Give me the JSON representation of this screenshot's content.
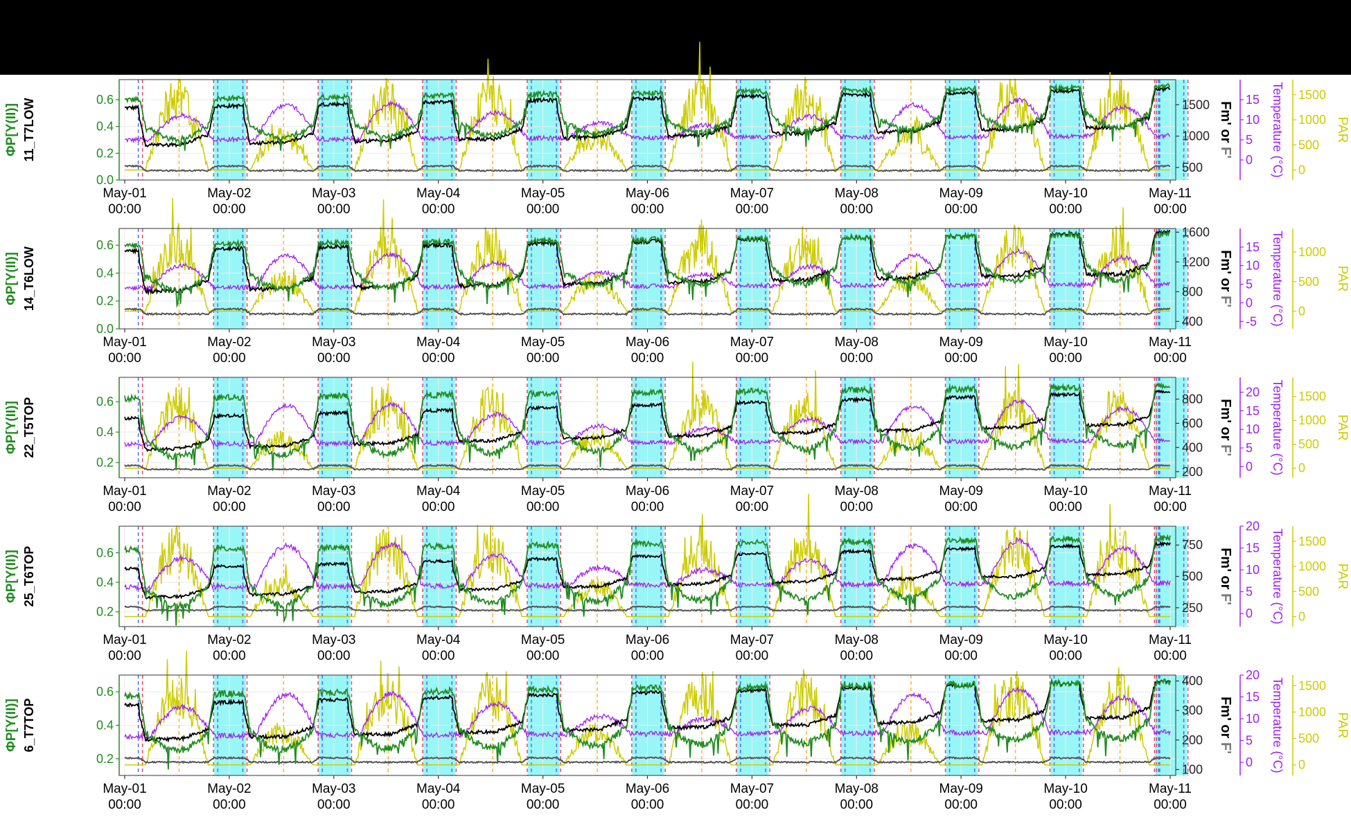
{
  "x_axis": {
    "tick_labels": [
      [
        "May-01",
        "00:00"
      ],
      [
        "May-02",
        "00:00"
      ],
      [
        "May-03",
        "00:00"
      ],
      [
        "May-04",
        "00:00"
      ],
      [
        "May-05",
        "00:00"
      ],
      [
        "May-06",
        "00:00"
      ],
      [
        "May-07",
        "00:00"
      ],
      [
        "May-08",
        "00:00"
      ],
      [
        "May-09",
        "00:00"
      ],
      [
        "May-10",
        "00:00"
      ],
      [
        "May-11",
        "00:00"
      ]
    ],
    "range_days": [
      0,
      10
    ]
  },
  "axis_titles": {
    "phi": "ΦP[Y(II)]",
    "fm": "Fm' or F'",
    "temperature": "Temperature (°C)",
    "par": "PAR"
  },
  "colors": {
    "phi": "#228B22",
    "fm_prime": "#000000",
    "f_prime": "#555555",
    "temperature": "#A020F0",
    "par": "#CCCC00",
    "night_shade": "#8EF5F5",
    "vline_red": "#E0476A",
    "vline_blue": "#4D6BFF",
    "vline_orange": "#FFB133",
    "grid": "#EBEBEB",
    "panel_border": "#333333"
  },
  "chart_data": [
    {
      "type": "line",
      "panel_label": "11_T7LOW",
      "ylim_phi": [
        0,
        0.75
      ],
      "phi_ticks": [
        "0.0",
        "0.2",
        "0.4",
        "0.6"
      ],
      "ylim_fm": [
        300,
        1900
      ],
      "fm_ticks": [
        [
          "500",
          500
        ],
        [
          "1000",
          1000
        ],
        [
          "1500",
          1500
        ]
      ],
      "ylim_temp": [
        -5,
        20
      ],
      "temp_ticks": [
        [
          "0",
          0
        ],
        [
          "5",
          5
        ],
        [
          "10",
          10
        ],
        [
          "15",
          15
        ]
      ],
      "ylim_par": [
        -200,
        1800
      ],
      "par_ticks": [
        [
          "0",
          0
        ],
        [
          "500",
          500
        ],
        [
          "1000",
          1000
        ],
        [
          "1500",
          1500
        ]
      ],
      "levels": {
        "phi_day": 0.35,
        "phi_night": 0.6,
        "phi_trend": 0.01,
        "fm_day": 850,
        "fm_night": 1450,
        "fm_trend": 30,
        "f_base": 450,
        "temp_base": 5,
        "temp_amp": 10,
        "par_peak": 1400
      }
    },
    {
      "type": "line",
      "panel_label": "14_T6LOW",
      "ylim_phi": [
        0,
        0.72
      ],
      "phi_ticks": [
        "0.0",
        "0.2",
        "0.4",
        "0.6"
      ],
      "ylim_fm": [
        300,
        1650
      ],
      "fm_ticks": [
        [
          "400",
          400
        ],
        [
          "800",
          800
        ],
        [
          "1200",
          1200
        ],
        [
          "1600",
          1600
        ]
      ],
      "ylim_temp": [
        -7,
        20
      ],
      "temp_ticks": [
        [
          "-5",
          -5
        ],
        [
          "0",
          0
        ],
        [
          "5",
          5
        ],
        [
          "10",
          10
        ],
        [
          "15",
          15
        ]
      ],
      "ylim_par": [
        -300,
        1400
      ],
      "par_ticks": [
        [
          "0",
          0
        ],
        [
          "500",
          500
        ],
        [
          "1000",
          1000
        ]
      ],
      "levels": {
        "phi_day": 0.33,
        "phi_night": 0.6,
        "phi_trend": 0.008,
        "fm_day": 800,
        "fm_night": 1350,
        "fm_trend": 25,
        "f_base": 500,
        "temp_base": 4,
        "temp_amp": 10,
        "par_peak": 1100
      }
    },
    {
      "type": "line",
      "panel_label": "22_T5TOP",
      "ylim_phi": [
        0.1,
        0.76
      ],
      "phi_ticks": [
        "0.2",
        "0.4",
        "0.6"
      ],
      "ylim_fm": [
        150,
        980
      ],
      "fm_ticks": [
        [
          "200",
          200
        ],
        [
          "400",
          400
        ],
        [
          "600",
          600
        ],
        [
          "800",
          800
        ]
      ],
      "ylim_temp": [
        -3,
        24
      ],
      "temp_ticks": [
        [
          "0",
          0
        ],
        [
          "5",
          5
        ],
        [
          "10",
          10
        ],
        [
          "15",
          15
        ],
        [
          "20",
          20
        ]
      ],
      "ylim_par": [
        -200,
        1900
      ],
      "par_ticks": [
        [
          "0",
          0
        ],
        [
          "500",
          500
        ],
        [
          "1000",
          1000
        ],
        [
          "1500",
          1500
        ]
      ],
      "levels": {
        "phi_day": 0.3,
        "phi_night": 0.62,
        "phi_trend": 0.008,
        "fm_day": 380,
        "fm_night": 640,
        "fm_trend": 22,
        "f_base": 220,
        "temp_base": 6,
        "temp_amp": 12,
        "par_peak": 1300
      }
    },
    {
      "type": "line",
      "panel_label": "25_T6TOP",
      "ylim_phi": [
        0.1,
        0.78
      ],
      "phi_ticks": [
        "0.2",
        "0.4",
        "0.6"
      ],
      "ylim_fm": [
        100,
        900
      ],
      "fm_ticks": [
        [
          "250",
          250
        ],
        [
          "500",
          500
        ],
        [
          "750",
          750
        ]
      ],
      "ylim_temp": [
        -3,
        20
      ],
      "temp_ticks": [
        [
          "0",
          0
        ],
        [
          "5",
          5
        ],
        [
          "10",
          10
        ],
        [
          "15",
          15
        ],
        [
          "20",
          20
        ]
      ],
      "ylim_par": [
        -200,
        1800
      ],
      "par_ticks": [
        [
          "0",
          0
        ],
        [
          "500",
          500
        ],
        [
          "1000",
          1000
        ],
        [
          "1500",
          1500
        ]
      ],
      "levels": {
        "phi_day": 0.3,
        "phi_night": 0.62,
        "phi_trend": 0.008,
        "fm_day": 330,
        "fm_night": 560,
        "fm_trend": 20,
        "f_base": 230,
        "temp_base": 6,
        "temp_amp": 11,
        "par_peak": 1350
      }
    },
    {
      "type": "line",
      "panel_label": "6_T7TOP",
      "ylim_phi": [
        0.1,
        0.7
      ],
      "phi_ticks": [
        "0.2",
        "0.4",
        "0.6"
      ],
      "ylim_fm": [
        80,
        420
      ],
      "fm_ticks": [
        [
          "100",
          100
        ],
        [
          "200",
          200
        ],
        [
          "300",
          300
        ],
        [
          "400",
          400
        ]
      ],
      "ylim_temp": [
        -3,
        20
      ],
      "temp_ticks": [
        [
          "0",
          0
        ],
        [
          "5",
          5
        ],
        [
          "10",
          10
        ],
        [
          "15",
          15
        ],
        [
          "20",
          20
        ]
      ],
      "ylim_par": [
        -200,
        1700
      ],
      "par_ticks": [
        [
          "0",
          0
        ],
        [
          "500",
          500
        ],
        [
          "1000",
          1000
        ],
        [
          "1500",
          1500
        ]
      ],
      "levels": {
        "phi_day": 0.3,
        "phi_night": 0.58,
        "phi_trend": 0.008,
        "fm_day": 200,
        "fm_night": 320,
        "fm_trend": 8,
        "f_base": 125,
        "temp_base": 6,
        "temp_amp": 11,
        "par_peak": 1350
      }
    }
  ]
}
